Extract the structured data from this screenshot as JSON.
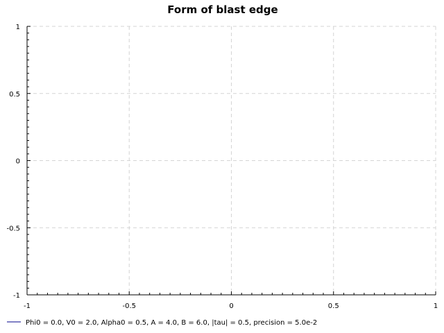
{
  "chart_data": {
    "type": "line",
    "title": "Form of blast edge",
    "xlabel": "",
    "ylabel": "",
    "xlim": [
      -1,
      1
    ],
    "ylim": [
      -1,
      1
    ],
    "x_ticks": [
      -1,
      -0.5,
      0,
      0.5,
      1
    ],
    "y_ticks": [
      -1,
      -0.5,
      0,
      0.5,
      1
    ],
    "x_tick_labels": [
      "-1",
      "-0.5",
      "0",
      "0.5",
      "1"
    ],
    "y_tick_labels": [
      "-1",
      "-0.5",
      "0",
      "0.5",
      "1"
    ],
    "grid": true,
    "legend_position": "bottom-left",
    "series": [
      {
        "name": "Phi0 = 0.0, V0 = 2.0, Alpha0 = 0.5, A = 4.0, B = 6.0, |tau| = 0.5, precision = 5.0e-2",
        "color": "#00008b",
        "x": [],
        "y": []
      }
    ]
  }
}
